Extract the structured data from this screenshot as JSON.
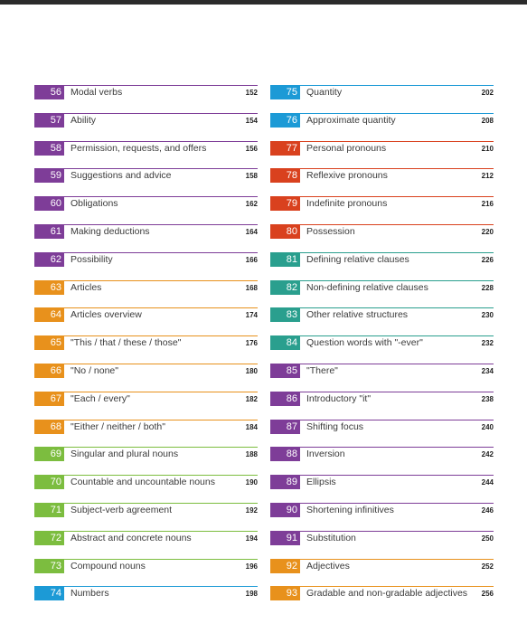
{
  "colors": {
    "purple": "#7e3d98",
    "orange": "#e8911c",
    "green": "#7cbd3f",
    "blue": "#1c9ad6",
    "red": "#d9411e",
    "teal": "#2a9f8e"
  },
  "left_column": [
    {
      "number": "56",
      "title": "Modal verbs",
      "page": "152",
      "color": "#7e3d98"
    },
    {
      "number": "57",
      "title": "Ability",
      "page": "154",
      "color": "#7e3d98"
    },
    {
      "number": "58",
      "title": "Permission, requests, and offers",
      "page": "156",
      "color": "#7e3d98"
    },
    {
      "number": "59",
      "title": "Suggestions and advice",
      "page": "158",
      "color": "#7e3d98"
    },
    {
      "number": "60",
      "title": "Obligations",
      "page": "162",
      "color": "#7e3d98"
    },
    {
      "number": "61",
      "title": "Making deductions",
      "page": "164",
      "color": "#7e3d98"
    },
    {
      "number": "62",
      "title": "Possibility",
      "page": "166",
      "color": "#7e3d98"
    },
    {
      "number": "63",
      "title": "Articles",
      "page": "168",
      "color": "#e8911c"
    },
    {
      "number": "64",
      "title": "Articles overview",
      "page": "174",
      "color": "#e8911c"
    },
    {
      "number": "65",
      "title": "\"This / that / these / those\"",
      "page": "176",
      "color": "#e8911c"
    },
    {
      "number": "66",
      "title": "\"No / none\"",
      "page": "180",
      "color": "#e8911c"
    },
    {
      "number": "67",
      "title": "\"Each / every\"",
      "page": "182",
      "color": "#e8911c"
    },
    {
      "number": "68",
      "title": "\"Either / neither / both\"",
      "page": "184",
      "color": "#e8911c"
    },
    {
      "number": "69",
      "title": "Singular and plural nouns",
      "page": "188",
      "color": "#7cbd3f"
    },
    {
      "number": "70",
      "title": "Countable and uncountable nouns",
      "page": "190",
      "color": "#7cbd3f"
    },
    {
      "number": "71",
      "title": "Subject-verb agreement",
      "page": "192",
      "color": "#7cbd3f"
    },
    {
      "number": "72",
      "title": "Abstract and concrete nouns",
      "page": "194",
      "color": "#7cbd3f"
    },
    {
      "number": "73",
      "title": "Compound nouns",
      "page": "196",
      "color": "#7cbd3f"
    },
    {
      "number": "74",
      "title": "Numbers",
      "page": "198",
      "color": "#1c9ad6"
    }
  ],
  "right_column": [
    {
      "number": "75",
      "title": "Quantity",
      "page": "202",
      "color": "#1c9ad6"
    },
    {
      "number": "76",
      "title": "Approximate quantity",
      "page": "208",
      "color": "#1c9ad6"
    },
    {
      "number": "77",
      "title": "Personal pronouns",
      "page": "210",
      "color": "#d9411e"
    },
    {
      "number": "78",
      "title": "Reflexive pronouns",
      "page": "212",
      "color": "#d9411e"
    },
    {
      "number": "79",
      "title": "Indefinite pronouns",
      "page": "216",
      "color": "#d9411e"
    },
    {
      "number": "80",
      "title": "Possession",
      "page": "220",
      "color": "#d9411e"
    },
    {
      "number": "81",
      "title": "Defining relative clauses",
      "page": "226",
      "color": "#2a9f8e"
    },
    {
      "number": "82",
      "title": "Non-defining relative clauses",
      "page": "228",
      "color": "#2a9f8e"
    },
    {
      "number": "83",
      "title": "Other relative structures",
      "page": "230",
      "color": "#2a9f8e"
    },
    {
      "number": "84",
      "title": "Question words with \"-ever\"",
      "page": "232",
      "color": "#2a9f8e"
    },
    {
      "number": "85",
      "title": "\"There\"",
      "page": "234",
      "color": "#7e3d98"
    },
    {
      "number": "86",
      "title": "Introductory \"it\"",
      "page": "238",
      "color": "#7e3d98"
    },
    {
      "number": "87",
      "title": "Shifting focus",
      "page": "240",
      "color": "#7e3d98"
    },
    {
      "number": "88",
      "title": "Inversion",
      "page": "242",
      "color": "#7e3d98"
    },
    {
      "number": "89",
      "title": "Ellipsis",
      "page": "244",
      "color": "#7e3d98"
    },
    {
      "number": "90",
      "title": "Shortening infinitives",
      "page": "246",
      "color": "#7e3d98"
    },
    {
      "number": "91",
      "title": "Substitution",
      "page": "250",
      "color": "#7e3d98"
    },
    {
      "number": "92",
      "title": "Adjectives",
      "page": "252",
      "color": "#e8911c"
    },
    {
      "number": "93",
      "title": "Gradable and non-gradable adjectives",
      "page": "256",
      "color": "#e8911c"
    }
  ]
}
